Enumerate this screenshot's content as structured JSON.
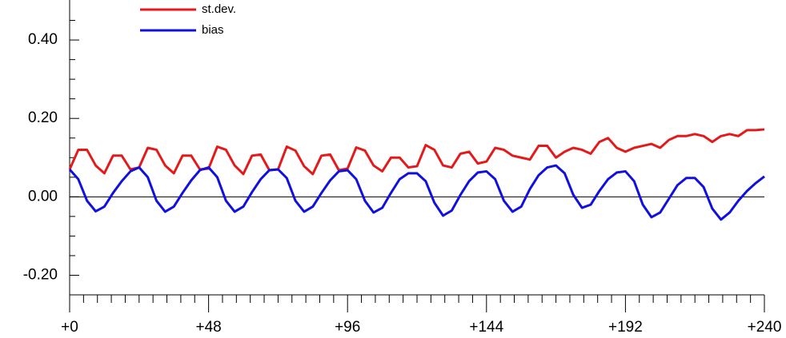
{
  "chart_data": {
    "type": "line",
    "x": [
      0,
      3,
      6,
      9,
      12,
      15,
      18,
      21,
      24,
      27,
      30,
      33,
      36,
      39,
      42,
      45,
      48,
      51,
      54,
      57,
      60,
      63,
      66,
      69,
      72,
      75,
      78,
      81,
      84,
      87,
      90,
      93,
      96,
      99,
      102,
      105,
      108,
      111,
      114,
      117,
      120,
      123,
      126,
      129,
      132,
      135,
      138,
      141,
      144,
      147,
      150,
      153,
      156,
      159,
      162,
      165,
      168,
      171,
      174,
      177,
      180,
      183,
      186,
      189,
      192,
      195,
      198,
      201,
      204,
      207,
      210,
      213,
      216,
      219,
      222,
      225,
      228,
      231,
      234,
      237,
      240
    ],
    "series": [
      {
        "name": "st.dev.",
        "color": "#e41a1a",
        "values": [
          0.07,
          0.12,
          0.12,
          0.08,
          0.06,
          0.105,
          0.105,
          0.07,
          0.075,
          0.125,
          0.12,
          0.08,
          0.06,
          0.105,
          0.105,
          0.07,
          0.072,
          0.128,
          0.12,
          0.08,
          0.058,
          0.105,
          0.108,
          0.068,
          0.07,
          0.128,
          0.118,
          0.078,
          0.058,
          0.105,
          0.108,
          0.068,
          0.072,
          0.126,
          0.118,
          0.08,
          0.065,
          0.1,
          0.1,
          0.075,
          0.078,
          0.132,
          0.12,
          0.08,
          0.075,
          0.11,
          0.115,
          0.085,
          0.09,
          0.125,
          0.12,
          0.105,
          0.1,
          0.095,
          0.13,
          0.13,
          0.1,
          0.115,
          0.125,
          0.12,
          0.11,
          0.14,
          0.15,
          0.125,
          0.115,
          0.125,
          0.13,
          0.135,
          0.125,
          0.145,
          0.155,
          0.155,
          0.16,
          0.155,
          0.14,
          0.155,
          0.16,
          0.155,
          0.17,
          0.17,
          0.172
        ]
      },
      {
        "name": "bias",
        "color": "#1010e0",
        "values": [
          0.07,
          0.045,
          -0.01,
          -0.037,
          -0.025,
          0.01,
          0.04,
          0.065,
          0.075,
          0.05,
          -0.01,
          -0.038,
          -0.025,
          0.01,
          0.042,
          0.068,
          0.075,
          0.05,
          -0.01,
          -0.038,
          -0.025,
          0.012,
          0.045,
          0.068,
          0.07,
          0.048,
          -0.01,
          -0.038,
          -0.025,
          0.01,
          0.042,
          0.065,
          0.068,
          0.045,
          -0.01,
          -0.04,
          -0.028,
          0.01,
          0.045,
          0.06,
          0.06,
          0.04,
          -0.015,
          -0.048,
          -0.035,
          0.005,
          0.04,
          0.062,
          0.065,
          0.045,
          -0.01,
          -0.038,
          -0.025,
          0.02,
          0.055,
          0.075,
          0.08,
          0.06,
          0.005,
          -0.028,
          -0.02,
          0.015,
          0.045,
          0.062,
          0.065,
          0.04,
          -0.02,
          -0.052,
          -0.04,
          -0.005,
          0.03,
          0.048,
          0.048,
          0.025,
          -0.03,
          -0.058,
          -0.04,
          -0.01,
          0.015,
          0.035,
          0.052
        ]
      }
    ],
    "xlim": [
      0,
      240
    ],
    "xticks": [
      {
        "value": 0,
        "label": "+0"
      },
      {
        "value": 48,
        "label": "+48"
      },
      {
        "value": 96,
        "label": "+96"
      },
      {
        "value": 144,
        "label": "+144"
      },
      {
        "value": 192,
        "label": "+192"
      },
      {
        "value": 240,
        "label": "+240"
      }
    ],
    "xminorticks": [
      4.8,
      9.6,
      14.4,
      19.2,
      24,
      28.8,
      33.6,
      38.4,
      43.2,
      52.8,
      57.6,
      62.4,
      67.2,
      72,
      76.8,
      81.6,
      86.4,
      91.2,
      100.8,
      105.6,
      110.4,
      115.2,
      120,
      124.8,
      129.6,
      134.4,
      139.2,
      148.8,
      153.6,
      158.4,
      163.2,
      168,
      172.8,
      177.6,
      182.4,
      187.2,
      196.8,
      201.6,
      206.4,
      211.2,
      216,
      220.8,
      225.6,
      230.4,
      235.2
    ],
    "ylim": [
      -0.25,
      0.5
    ],
    "yticks": [
      {
        "value": 0.4,
        "label": "0.40"
      },
      {
        "value": 0.2,
        "label": "0.20"
      },
      {
        "value": 0,
        "label": "0.00"
      },
      {
        "value": -0.2,
        "label": "-0.20"
      }
    ],
    "yminorticks": [
      0.45,
      0.35,
      0.3,
      0.25,
      0.15,
      0.1,
      0.05,
      -0.05,
      -0.1,
      -0.15
    ],
    "zero_line": 0,
    "legend": "upper left"
  }
}
